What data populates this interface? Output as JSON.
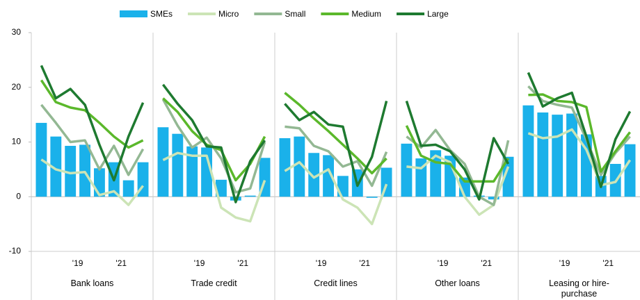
{
  "chart_data": {
    "type": "panel-bar-line",
    "ylim": [
      -10,
      30
    ],
    "yticks": [
      -10,
      0,
      10,
      20,
      30
    ],
    "legend": [
      {
        "name": "SMEs",
        "color": "#1ab1ea",
        "kind": "bar"
      },
      {
        "name": "Micro",
        "color": "#cce4b6",
        "kind": "line"
      },
      {
        "name": "Small",
        "color": "#93b893",
        "kind": "line"
      },
      {
        "name": "Medium",
        "color": "#5bb82b",
        "kind": "line"
      },
      {
        "name": "Large",
        "color": "#1e7a30",
        "kind": "line"
      }
    ],
    "panels": [
      {
        "label": "Bank loans",
        "categories": [
          null,
          null,
          null,
          "'19",
          null,
          null,
          "'21",
          null
        ],
        "series": [
          {
            "values": [
              13.5,
              11,
              9.3,
              9.5,
              5.2,
              6.3,
              3,
              6.3
            ]
          },
          {
            "values": [
              6.8,
              5,
              4.3,
              4.5,
              0.3,
              1,
              -1.5,
              2
            ]
          },
          {
            "values": [
              16.8,
              13.5,
              10,
              10.3,
              5,
              9.3,
              4,
              8.7
            ]
          },
          {
            "values": [
              21.3,
              17.3,
              16.3,
              15.8,
              13.5,
              11,
              9,
              10.3
            ]
          },
          {
            "values": [
              24,
              18,
              19.7,
              16.8,
              9.5,
              3,
              11,
              17.2
            ]
          }
        ]
      },
      {
        "label": "Trade credit",
        "categories": [
          null,
          null,
          null,
          "'19",
          null,
          null,
          "'21",
          null
        ],
        "series": [
          {
            "values": [
              12.7,
              11.5,
              9.2,
              9,
              3.1,
              -0.7,
              0.2,
              7.1
            ]
          },
          {
            "values": [
              6.7,
              8,
              7.5,
              7.5,
              -2,
              -3.8,
              -4.5,
              3
            ]
          },
          {
            "values": [
              17.8,
              13,
              9,
              10.8,
              7,
              0.8,
              1.5,
              10
            ]
          },
          {
            "values": [
              18,
              15.5,
              12,
              9.5,
              8.5,
              3,
              6,
              11
            ]
          },
          {
            "values": [
              20.5,
              17,
              14,
              9.2,
              9,
              -1,
              6.5,
              10.3
            ]
          }
        ]
      },
      {
        "label": "Credit lines",
        "categories": [
          null,
          null,
          null,
          "'19",
          null,
          null,
          "'21",
          null
        ],
        "series": [
          {
            "values": [
              10.7,
              11,
              8,
              7.6,
              3.8,
              5,
              -0.2,
              5.3
            ]
          },
          {
            "values": [
              4.7,
              6.3,
              3.5,
              5,
              -0.5,
              -2,
              -5,
              2.3
            ]
          },
          {
            "values": [
              12.8,
              12.5,
              9.3,
              8.3,
              5.5,
              6.5,
              2,
              8.2
            ]
          },
          {
            "values": [
              19,
              16.8,
              14.3,
              12,
              9.5,
              7,
              4.3,
              7
            ]
          },
          {
            "values": [
              17,
              14,
              15.5,
              13.2,
              12.8,
              2,
              7.3,
              17.5
            ]
          }
        ]
      },
      {
        "label": "Other loans",
        "categories": [
          null,
          null,
          null,
          "'19",
          null,
          null,
          "'21",
          null
        ],
        "series": [
          {
            "values": [
              9.7,
              7,
              8.5,
              7.5,
              3.5,
              0.2,
              -0.5,
              7.3
            ]
          },
          {
            "values": [
              5.5,
              5.2,
              7.5,
              6.3,
              0,
              -3.3,
              -1.5,
              5.5
            ]
          },
          {
            "values": [
              11,
              9,
              12.2,
              8.5,
              6,
              0,
              -1.5,
              10.3
            ]
          },
          {
            "values": [
              13,
              7.5,
              6.3,
              6,
              2.8,
              2.8,
              2.8,
              7
            ]
          },
          {
            "values": [
              17.5,
              9.3,
              9.5,
              8.3,
              5,
              -0.5,
              10.7,
              6
            ]
          }
        ]
      },
      {
        "label": "Leasing or hire-purchase",
        "categories": [
          null,
          null,
          null,
          "'19",
          null,
          null,
          "'21",
          null
        ],
        "series": [
          {
            "values": [
              16.7,
              15.4,
              15,
              15.2,
              11.4,
              3.8,
              6,
              9.6
            ]
          },
          {
            "values": [
              11.6,
              10.7,
              11,
              12.3,
              8.6,
              2.1,
              2.7,
              6.7
            ]
          },
          {
            "values": [
              20.2,
              17.5,
              16.8,
              16.3,
              10.5,
              4,
              8,
              11
            ]
          },
          {
            "values": [
              18.6,
              18.7,
              17.5,
              17.3,
              16.4,
              4.6,
              8.3,
              11.8
            ]
          },
          {
            "values": [
              22.7,
              16.5,
              18,
              19,
              11,
              1.8,
              10.5,
              15.6
            ]
          }
        ]
      }
    ]
  }
}
